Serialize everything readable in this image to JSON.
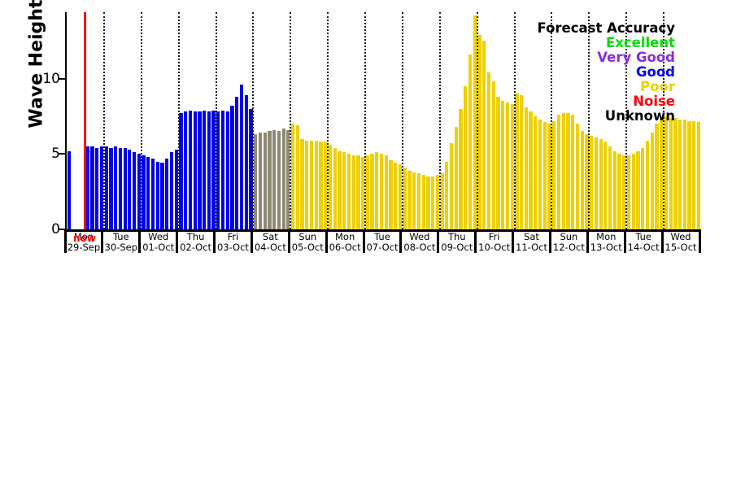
{
  "legend": {
    "title": "Forecast Accuracy",
    "items": [
      {
        "label": "Excellent",
        "color": "#00dd00"
      },
      {
        "label": "Very Good",
        "color": "#8a2be2"
      },
      {
        "label": "Good",
        "color": "#0000ee"
      },
      {
        "label": "Poor",
        "color": "#efd000"
      },
      {
        "label": "Noise",
        "color": "#ff0000"
      },
      {
        "label": "Unknown",
        "color": "#000000"
      }
    ]
  },
  "now_marker": {
    "label": "now",
    "color": "#ff0000",
    "day_index": 0,
    "fraction": 0.5
  },
  "chart_data": {
    "type": "bar",
    "title": "",
    "xlabel": "",
    "ylabel": "Wave Height, ft",
    "ylim": [
      0,
      14.4
    ],
    "yticks": [
      0,
      5,
      10
    ],
    "grid": "vertical-dotted-at-day-boundaries",
    "legend_position": "top-right",
    "bar_status_colors": {
      "good": "#0000ee",
      "poor": "#efd000",
      "unknown": "#8f8974"
    },
    "days": [
      {
        "dow": "Mon",
        "date": "29-Sep",
        "status": "good",
        "values": [
          5.2,
          null,
          null,
          null,
          5.5,
          5.5,
          5.4,
          5.5
        ]
      },
      {
        "dow": "Tue",
        "date": "30-Sep",
        "status": "good",
        "values": [
          5.5,
          5.4,
          5.5,
          5.4,
          5.4,
          5.3,
          5.1,
          5.0
        ]
      },
      {
        "dow": "Wed",
        "date": "01-Oct",
        "status": "good",
        "values": [
          4.9,
          4.8,
          4.7,
          4.5,
          4.4,
          4.7,
          5.1,
          5.3
        ]
      },
      {
        "dow": "Thu",
        "date": "02-Oct",
        "status": "good",
        "values": [
          7.7,
          7.8,
          7.9,
          7.8,
          7.8,
          7.9,
          7.8,
          7.9
        ]
      },
      {
        "dow": "Fri",
        "date": "03-Oct",
        "status": "good",
        "values": [
          7.8,
          7.9,
          7.8,
          8.2,
          8.8,
          9.6,
          8.9,
          8.0
        ]
      },
      {
        "dow": "Sat",
        "date": "04-Oct",
        "status": "unknown",
        "values": [
          6.3,
          6.4,
          6.4,
          6.5,
          6.6,
          6.5,
          6.7,
          6.6
        ]
      },
      {
        "dow": "Sun",
        "date": "05-Oct",
        "status": "poor",
        "values": [
          7.0,
          6.9,
          6.0,
          5.9,
          5.9,
          5.9,
          5.8,
          5.8
        ]
      },
      {
        "dow": "Mon",
        "date": "06-Oct",
        "status": "poor",
        "values": [
          5.6,
          5.4,
          5.2,
          5.1,
          5.0,
          4.9,
          4.9,
          4.8
        ]
      },
      {
        "dow": "Tue",
        "date": "07-Oct",
        "status": "poor",
        "values": [
          4.9,
          5.0,
          5.1,
          5.0,
          4.9,
          4.6,
          4.4,
          4.3
        ]
      },
      {
        "dow": "Wed",
        "date": "08-Oct",
        "status": "poor",
        "values": [
          4.1,
          3.9,
          3.8,
          3.7,
          3.6,
          3.5,
          3.5,
          3.6
        ]
      },
      {
        "dow": "Thu",
        "date": "09-Oct",
        "status": "poor",
        "values": [
          3.7,
          4.5,
          5.7,
          6.8,
          8.0,
          9.5,
          11.6,
          14.2
        ]
      },
      {
        "dow": "Fri",
        "date": "10-Oct",
        "status": "poor",
        "values": [
          12.9,
          12.5,
          10.4,
          9.8,
          8.8,
          8.5,
          8.4,
          8.3
        ]
      },
      {
        "dow": "Sat",
        "date": "11-Oct",
        "status": "poor",
        "values": [
          9.0,
          8.9,
          8.1,
          7.8,
          7.5,
          7.3,
          7.1,
          7.0
        ]
      },
      {
        "dow": "Sun",
        "date": "12-Oct",
        "status": "poor",
        "values": [
          7.2,
          7.6,
          7.7,
          7.7,
          7.6,
          7.0,
          6.5,
          6.3
        ]
      },
      {
        "dow": "Mon",
        "date": "13-Oct",
        "status": "poor",
        "values": [
          6.2,
          6.1,
          6.0,
          5.8,
          5.5,
          5.2,
          5.0,
          4.9
        ]
      },
      {
        "dow": "Tue",
        "date": "14-Oct",
        "status": "poor",
        "values": [
          4.9,
          5.0,
          5.2,
          5.4,
          5.9,
          6.4,
          7.0,
          7.4
        ]
      },
      {
        "dow": "Wed",
        "date": "15-Oct",
        "status": "poor",
        "values": [
          7.5,
          7.4,
          7.4,
          7.3,
          7.3,
          7.2,
          7.2,
          7.1
        ]
      }
    ]
  }
}
